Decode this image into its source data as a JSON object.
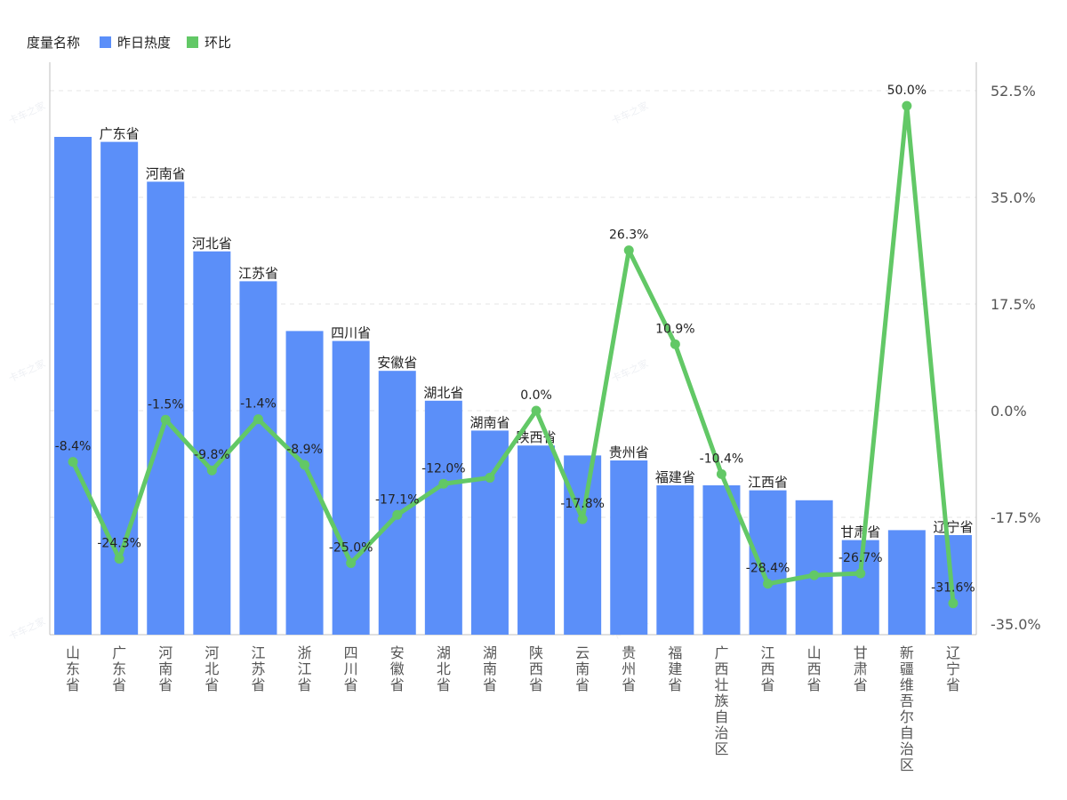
{
  "legend": {
    "title": "度量名称",
    "items": [
      {
        "label": "昨日热度",
        "color": "#5b8ff9"
      },
      {
        "label": "环比",
        "color": "#62c866"
      }
    ]
  },
  "chart_data": {
    "type": "bar",
    "categories": [
      "山东省",
      "广东省",
      "河南省",
      "河北省",
      "江苏省",
      "浙江省",
      "四川省",
      "安徽省",
      "湖北省",
      "湖南省",
      "陕西省",
      "云南省",
      "贵州省",
      "福建省",
      "广西壮族自治区",
      "江西省",
      "山西省",
      "甘肃省",
      "新疆维吾尔自治区",
      "辽宁省"
    ],
    "series": [
      {
        "name": "昨日热度",
        "type": "bar",
        "color": "#5b8ff9",
        "values": [
          100,
          99,
          91,
          77,
          71,
          61,
          59,
          53,
          47,
          41,
          38,
          36,
          35,
          30,
          30,
          29,
          27,
          19,
          21,
          20
        ],
        "bar_labels": [
          "",
          "广东省",
          "河南省",
          "河北省",
          "江苏省",
          "",
          "四川省",
          "安徽省",
          "湖北省",
          "湖南省",
          "陕西省",
          "",
          "贵州省",
          "福建省",
          "",
          "江西省",
          "",
          "甘肃省",
          "",
          "辽宁省"
        ]
      },
      {
        "name": "环比",
        "type": "line",
        "color": "#62c866",
        "axis": "right",
        "values": [
          -8.4,
          -24.3,
          -1.5,
          -9.8,
          -1.4,
          -8.9,
          -25.0,
          -17.1,
          -12.0,
          -11.0,
          0.0,
          -17.8,
          26.3,
          10.9,
          -10.4,
          -28.4,
          -27.0,
          -26.7,
          50.0,
          -31.6
        ],
        "point_labels": [
          "-8.4%",
          "-24.3%",
          "-1.5%",
          "-9.8%",
          "-1.4%",
          "-8.9%",
          "-25.0%",
          "-17.1%",
          "-12.0%",
          "",
          "0.0%",
          "-17.8%",
          "26.3%",
          "10.9%",
          "-10.4%",
          "-28.4%",
          "",
          "-26.7%",
          "50.0%",
          "-31.6%"
        ]
      }
    ],
    "y_right": {
      "ticks": [
        "52.5%",
        "35.0%",
        "17.5%",
        "0.0%",
        "-17.5%",
        "-35.0%"
      ],
      "tick_values": [
        52.5,
        35.0,
        17.5,
        0.0,
        -17.5,
        -35.0
      ],
      "range": [
        -35,
        52.5
      ]
    },
    "y_left_range": [
      0,
      115
    ],
    "grid": true,
    "legend_position": "top-left",
    "watermark": "卡车之家"
  }
}
